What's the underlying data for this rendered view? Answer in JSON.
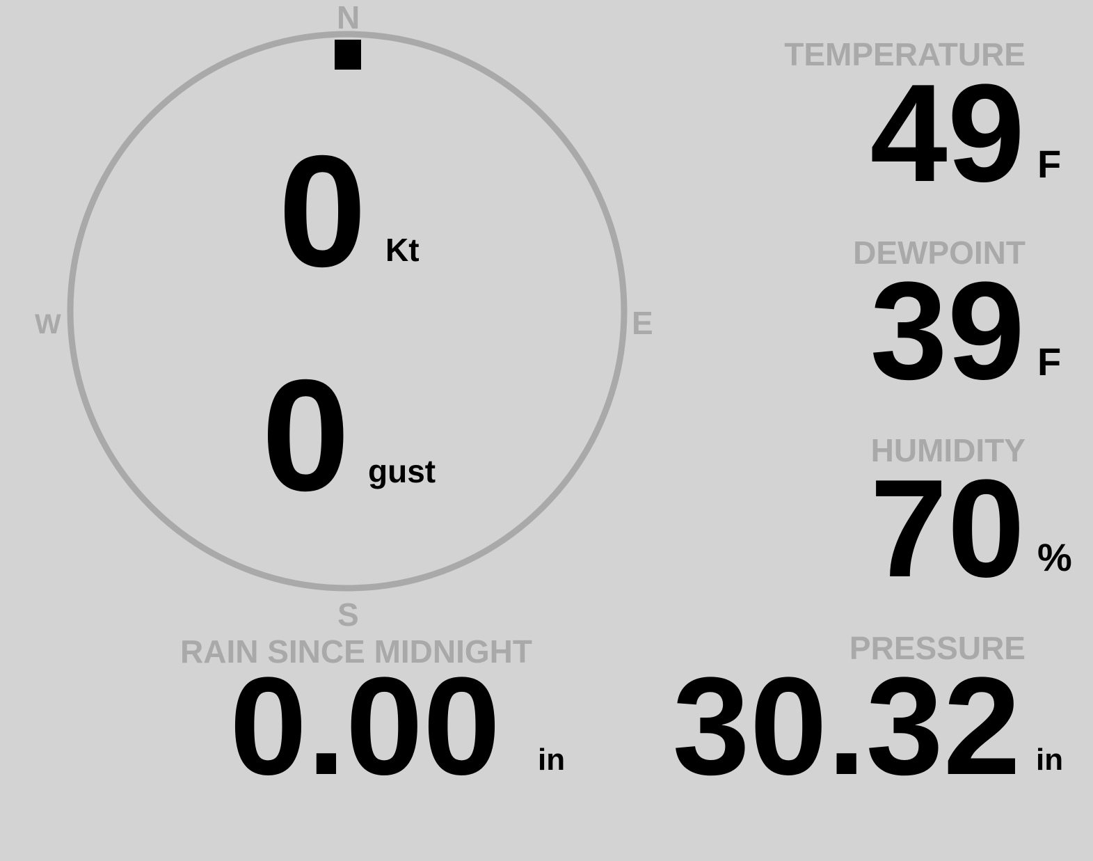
{
  "colors": {
    "background": "#d3d3d3",
    "label": "#a9a9a9",
    "value": "#000000"
  },
  "compass": {
    "north": "N",
    "south": "S",
    "east": "E",
    "west": "W",
    "direction_degrees": 0,
    "speed": "0",
    "speed_unit": "Kt",
    "gust": "0",
    "gust_unit": "gust"
  },
  "temperature": {
    "label": "TEMPERATURE",
    "value": "49",
    "unit": "F"
  },
  "dewpoint": {
    "label": "DEWPOINT",
    "value": "39",
    "unit": "F"
  },
  "humidity": {
    "label": "HUMIDITY",
    "value": "70",
    "unit": "%"
  },
  "pressure": {
    "label": "PRESSURE",
    "value": "30.32",
    "unit": "in"
  },
  "rain": {
    "label": "RAIN SINCE MIDNIGHT",
    "value": "0.00",
    "unit": "in"
  }
}
